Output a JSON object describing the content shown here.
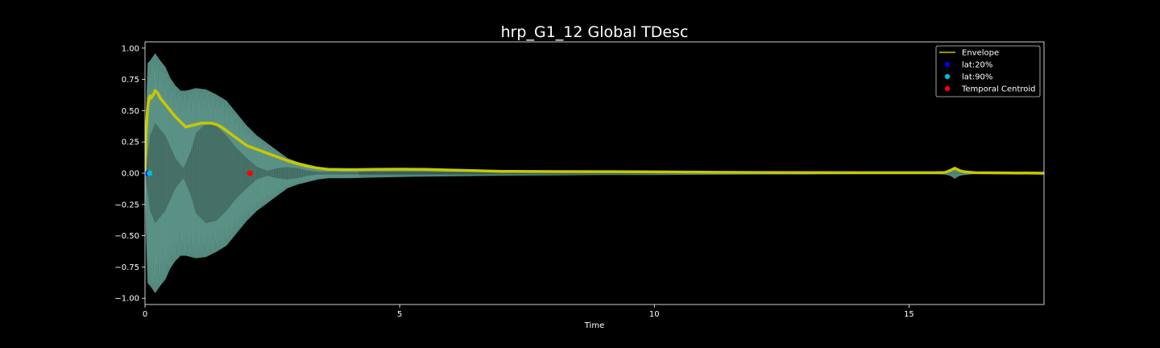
{
  "chart_data": {
    "type": "line",
    "title": "hrp_G1_12 Global TDesc",
    "xlabel": "Time",
    "ylabel": "",
    "xlim": [
      0,
      17.65
    ],
    "ylim": [
      -1.05,
      1.05
    ],
    "xticks": [
      0,
      5,
      10,
      15
    ],
    "yticks": [
      1.0,
      0.75,
      0.5,
      0.25,
      0.0,
      -0.25,
      -0.5,
      -0.75,
      -1.0
    ],
    "ytick_labels": [
      "1.00",
      "0.75",
      "0.50",
      "0.25",
      "0.00",
      "−0.25",
      "−0.50",
      "−0.75",
      "−1.00"
    ],
    "grid": false,
    "legend_position": "top-right",
    "waveform": {
      "color": "#5f9e92",
      "outer": {
        "t": [
          0,
          0.02,
          0.05,
          0.1,
          0.15,
          0.2,
          0.25,
          0.3,
          0.4,
          0.5,
          0.6,
          0.7,
          0.8,
          0.9,
          1.0,
          1.2,
          1.4,
          1.6,
          1.8,
          2.0,
          2.2,
          2.4,
          2.6,
          2.8,
          3.0,
          3.2,
          3.4,
          3.6,
          4.0,
          4.5,
          5.0,
          6.0,
          7.0,
          8.0,
          9.0,
          10.0,
          11.0,
          12.0,
          13.0,
          14.0,
          15.0,
          15.5,
          15.7,
          15.8,
          15.85,
          15.9,
          15.95,
          16.0,
          16.1,
          16.3,
          17.0,
          17.65
        ],
        "amp": [
          0.0,
          0.5,
          0.88,
          0.9,
          0.93,
          0.96,
          0.93,
          0.9,
          0.85,
          0.76,
          0.7,
          0.66,
          0.66,
          0.67,
          0.68,
          0.67,
          0.63,
          0.58,
          0.48,
          0.38,
          0.3,
          0.24,
          0.18,
          0.12,
          0.09,
          0.07,
          0.05,
          0.04,
          0.04,
          0.035,
          0.03,
          0.025,
          0.02,
          0.018,
          0.015,
          0.015,
          0.012,
          0.01,
          0.01,
          0.008,
          0.008,
          0.008,
          0.01,
          0.02,
          0.03,
          0.045,
          0.03,
          0.02,
          0.015,
          0.006,
          0.004,
          0.003
        ]
      },
      "inner": {
        "t": [
          0,
          0.1,
          0.2,
          0.4,
          0.6,
          0.75,
          0.8,
          0.9,
          1.0,
          1.2,
          1.4,
          1.6,
          1.8,
          2.0,
          2.2,
          2.4,
          2.6,
          2.8,
          3.0,
          3.2,
          3.4,
          4.0,
          5.0,
          17.65
        ],
        "amp": [
          0.0,
          0.3,
          0.4,
          0.3,
          0.12,
          0.04,
          0.08,
          0.18,
          0.32,
          0.4,
          0.38,
          0.3,
          0.2,
          0.12,
          0.05,
          0.02,
          0.04,
          0.05,
          0.04,
          0.02,
          0.01,
          0.01,
          0.01,
          0.0
        ]
      }
    },
    "series": [
      {
        "name": "Envelope",
        "color": "#c8c800",
        "x": [
          0,
          0.02,
          0.05,
          0.08,
          0.1,
          0.12,
          0.15,
          0.18,
          0.2,
          0.25,
          0.3,
          0.4,
          0.5,
          0.6,
          0.7,
          0.8,
          0.9,
          1.0,
          1.1,
          1.2,
          1.3,
          1.4,
          1.5,
          1.6,
          1.7,
          1.8,
          1.9,
          2.0,
          2.2,
          2.4,
          2.6,
          2.8,
          3.0,
          3.2,
          3.4,
          3.6,
          4.0,
          4.5,
          5.0,
          5.5,
          6.0,
          6.5,
          7.0,
          8.0,
          9.0,
          10.0,
          11.0,
          12.0,
          13.0,
          14.0,
          15.0,
          15.5,
          15.7,
          15.8,
          15.85,
          15.9,
          15.95,
          16.0,
          16.1,
          16.3,
          17.0,
          17.65
        ],
        "y": [
          0.0,
          0.3,
          0.52,
          0.6,
          0.62,
          0.6,
          0.62,
          0.64,
          0.66,
          0.64,
          0.6,
          0.55,
          0.5,
          0.45,
          0.41,
          0.37,
          0.38,
          0.39,
          0.4,
          0.4,
          0.4,
          0.39,
          0.37,
          0.34,
          0.31,
          0.28,
          0.25,
          0.22,
          0.19,
          0.16,
          0.13,
          0.1,
          0.075,
          0.055,
          0.04,
          0.03,
          0.028,
          0.03,
          0.032,
          0.03,
          0.025,
          0.02,
          0.015,
          0.013,
          0.012,
          0.01,
          0.008,
          0.006,
          0.005,
          0.004,
          0.004,
          0.004,
          0.006,
          0.02,
          0.03,
          0.04,
          0.03,
          0.02,
          0.01,
          0.004,
          0.002,
          0.0
        ]
      },
      {
        "name": "lat:20%",
        "type": "scatter",
        "color": "#0000ff",
        "x": [
          0.06
        ],
        "y": [
          0.0
        ]
      },
      {
        "name": "lat:90%",
        "type": "scatter",
        "color": "#00bcd4",
        "x": [
          0.09
        ],
        "y": [
          0.0
        ]
      },
      {
        "name": "Temporal Centroid",
        "type": "scatter",
        "color": "#ff0000",
        "x": [
          2.06
        ],
        "y": [
          0.0
        ]
      }
    ]
  }
}
